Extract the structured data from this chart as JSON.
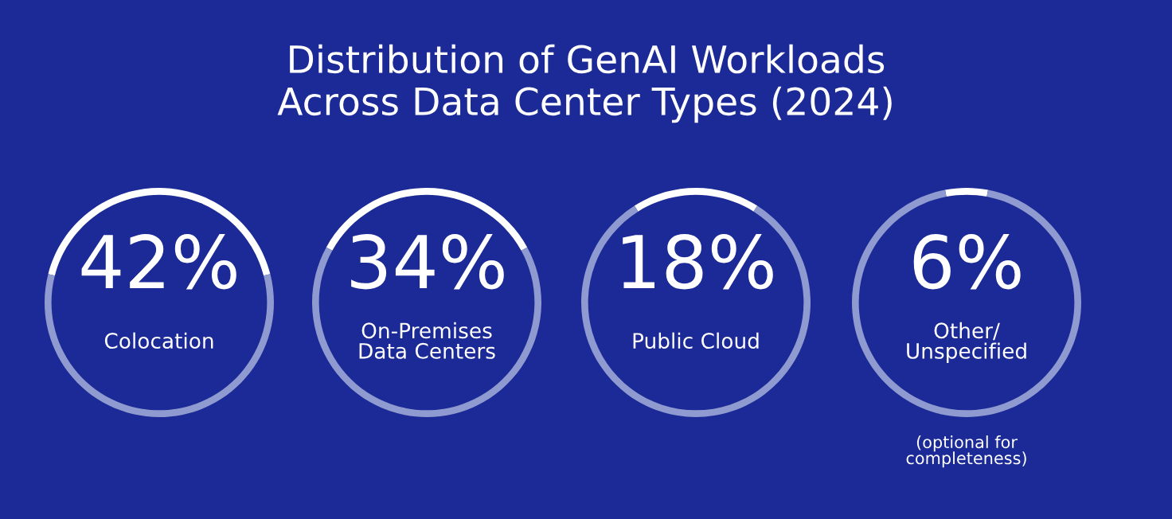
{
  "chart_data": [
    {
      "type": "other",
      "title": "Distribution of GenAI Workloads\nAcross Data Center Types (2024)"
    },
    {
      "type": "donut",
      "title": "Colocation",
      "categories": [
        null,
        null
      ],
      "values": [
        42,
        58
      ],
      "colors": [
        "#ffffff",
        "#8f9bd0"
      ],
      "value_labels": [
        "42%",
        null
      ]
    },
    {
      "type": "donut",
      "title": "On-Premises\nData Centers",
      "categories": [
        null,
        null
      ],
      "values": [
        34,
        66
      ],
      "colors": [
        "#ffffff",
        "#8f9bd0"
      ],
      "value_labels": [
        "34%",
        null
      ]
    },
    {
      "type": "donut",
      "title": "Public Cloud",
      "categories": [
        null,
        null
      ],
      "values": [
        18,
        82
      ],
      "colors": [
        "#ffffff",
        "#8f9bd0"
      ],
      "value_labels": [
        "18%",
        null
      ]
    },
    {
      "type": "donut",
      "title": "Other/\nUnspecified",
      "categories": [
        null,
        null
      ],
      "values": [
        6,
        94
      ],
      "colors": [
        "#ffffff",
        "#8f9bd0"
      ],
      "value_labels": [
        "6%",
        null
      ],
      "annotations": [
        "(optional for\ncompleteness)"
      ]
    }
  ]
}
